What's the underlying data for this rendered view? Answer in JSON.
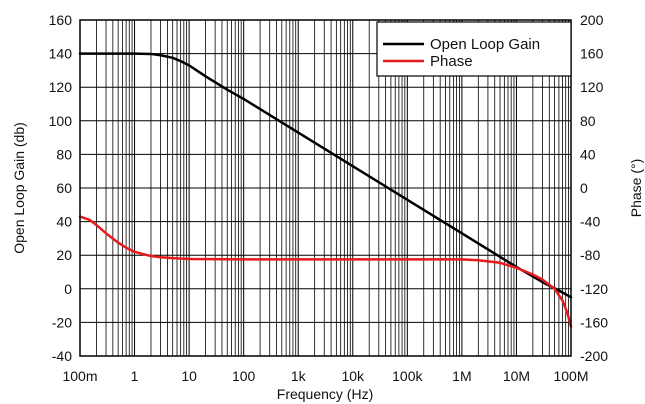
{
  "chart_data": {
    "type": "line",
    "xlabel": "Frequency (Hz)",
    "ylabel_left": "Open Loop Gain (db)",
    "ylabel_right": "Phase (°)",
    "x_scale": "log",
    "xlim": [
      0.1,
      100000000
    ],
    "ylim_left": [
      -40,
      160
    ],
    "ylim_right": [
      -200,
      200
    ],
    "grid": true,
    "legend_position": "top-right",
    "x_ticks": [
      {
        "value": 0.1,
        "label": "100m"
      },
      {
        "value": 1,
        "label": "1"
      },
      {
        "value": 10,
        "label": "10"
      },
      {
        "value": 100,
        "label": "100"
      },
      {
        "value": 1000,
        "label": "1k"
      },
      {
        "value": 10000,
        "label": "10k"
      },
      {
        "value": 100000,
        "label": "100k"
      },
      {
        "value": 1000000,
        "label": "1M"
      },
      {
        "value": 10000000,
        "label": "10M"
      },
      {
        "value": 100000000,
        "label": "100M"
      }
    ],
    "y_ticks_left": [
      {
        "value": 160,
        "label": "160"
      },
      {
        "value": 140,
        "label": "140"
      },
      {
        "value": 120,
        "label": "120"
      },
      {
        "value": 100,
        "label": "100"
      },
      {
        "value": 80,
        "label": "80"
      },
      {
        "value": 60,
        "label": "60"
      },
      {
        "value": 40,
        "label": "40"
      },
      {
        "value": 20,
        "label": "20"
      },
      {
        "value": 0,
        "label": "0"
      },
      {
        "value": -20,
        "label": "-20"
      },
      {
        "value": -40,
        "label": "-40"
      }
    ],
    "y_ticks_right": [
      {
        "value": 200,
        "label": "200"
      },
      {
        "value": 160,
        "label": "160"
      },
      {
        "value": 120,
        "label": "120"
      },
      {
        "value": 80,
        "label": "80"
      },
      {
        "value": 40,
        "label": "40"
      },
      {
        "value": 0,
        "label": "0"
      },
      {
        "value": -40,
        "label": "-40"
      },
      {
        "value": -80,
        "label": "-80"
      },
      {
        "value": -120,
        "label": "-120"
      },
      {
        "value": -160,
        "label": "-160"
      },
      {
        "value": -200,
        "label": "-200"
      }
    ],
    "series": [
      {
        "name": "Open Loop Gain",
        "axis": "left",
        "color": "#000000",
        "points": [
          [
            0.1,
            140
          ],
          [
            1,
            140
          ],
          [
            2,
            139.8
          ],
          [
            3,
            139
          ],
          [
            5,
            137.5
          ],
          [
            7,
            135.5
          ],
          [
            10,
            133
          ],
          [
            20,
            126.5
          ],
          [
            50,
            118.5
          ],
          [
            100,
            113
          ],
          [
            1000,
            93
          ],
          [
            10000,
            73
          ],
          [
            100000,
            53
          ],
          [
            1000000,
            33
          ],
          [
            10000000,
            13
          ],
          [
            30000000,
            4
          ],
          [
            60000000,
            -1
          ],
          [
            100000000,
            -5
          ]
        ]
      },
      {
        "name": "Phase",
        "axis": "right",
        "color": "#e8191c",
        "points": [
          [
            0.1,
            -34
          ],
          [
            0.15,
            -38
          ],
          [
            0.2,
            -44
          ],
          [
            0.3,
            -54
          ],
          [
            0.5,
            -65
          ],
          [
            0.7,
            -71
          ],
          [
            1,
            -76
          ],
          [
            2,
            -81
          ],
          [
            3,
            -82.5
          ],
          [
            5,
            -83.5
          ],
          [
            10,
            -84.5
          ],
          [
            100,
            -85
          ],
          [
            1000,
            -85
          ],
          [
            10000,
            -85
          ],
          [
            100000,
            -85
          ],
          [
            1000000,
            -85
          ],
          [
            2000000,
            -86
          ],
          [
            5000000,
            -89
          ],
          [
            10000000,
            -95
          ],
          [
            20000000,
            -103
          ],
          [
            30000000,
            -109
          ],
          [
            50000000,
            -120
          ],
          [
            70000000,
            -134
          ],
          [
            85000000,
            -148
          ],
          [
            100000000,
            -165
          ]
        ]
      }
    ]
  }
}
